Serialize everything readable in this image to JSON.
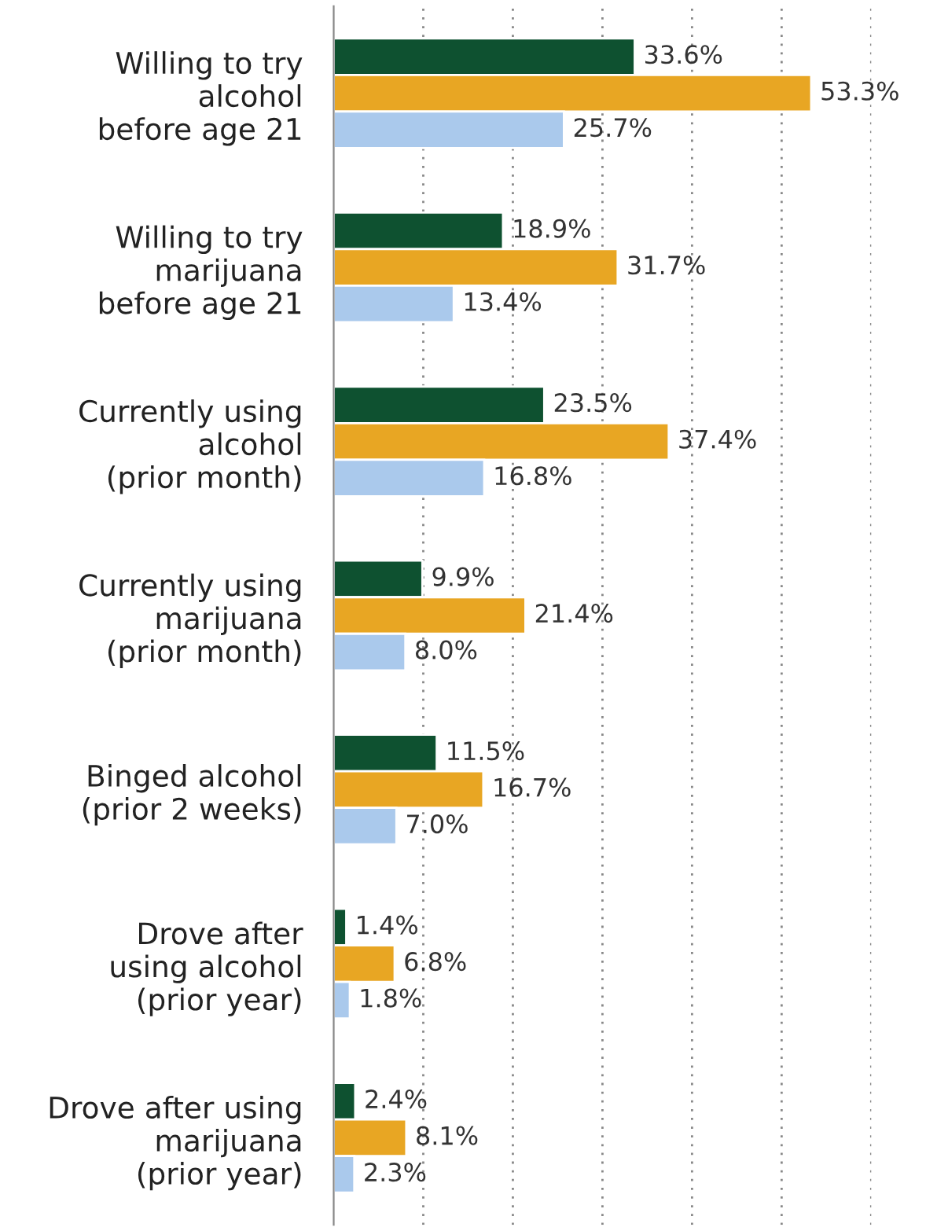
{
  "chart_data": {
    "type": "bar",
    "orientation": "horizontal",
    "categories": [
      "Willing to try\nalcohol\nbefore age 21",
      "Willing to try\nmarijuana\nbefore age 21",
      "Currently using\nalcohol\n(prior month)",
      "Currently using\nmarijuana\n(prior month)",
      "Binged alcohol\n(prior 2 weeks)",
      "Drove after\nusing alcohol\n(prior year)",
      "Drove after using\nmarijuana\n(prior year)"
    ],
    "series": [
      {
        "color": "#0e5130",
        "values": [
          33.6,
          18.9,
          23.5,
          9.9,
          11.5,
          1.4,
          2.4
        ],
        "value_labels": [
          "33.6%",
          "18.9%",
          "23.5%",
          "9.9%",
          "11.5%",
          "1.4%",
          "2.4%"
        ]
      },
      {
        "color": "#e8a623",
        "values": [
          53.3,
          31.7,
          37.4,
          21.4,
          16.7,
          6.8,
          8.1
        ],
        "value_labels": [
          "53.3%",
          "31.7%",
          "37.4%",
          "21.4%",
          "16.7%",
          "6.8%",
          "8.1%"
        ]
      },
      {
        "color": "#aac9ec",
        "values": [
          25.7,
          13.4,
          16.8,
          8.0,
          7.0,
          1.8,
          2.3
        ],
        "value_labels": [
          "25.7%",
          "13.4%",
          "16.8%",
          "8.0%",
          "7.0%",
          "1.8%",
          "2.3%"
        ]
      }
    ],
    "xticks": [
      {
        "value": 10,
        "label": null
      },
      {
        "value": 20,
        "label": null
      },
      {
        "value": 30,
        "label": null
      },
      {
        "value": 40,
        "label": null
      },
      {
        "value": 50,
        "label": null
      },
      {
        "value": 60,
        "label": null
      }
    ],
    "grid": "x",
    "tick_labels": "y",
    "legend": false
  }
}
